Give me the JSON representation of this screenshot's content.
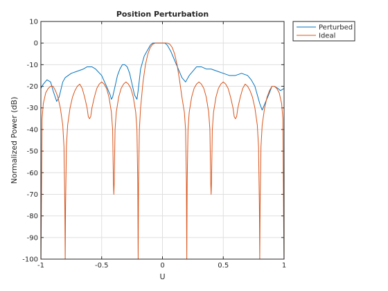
{
  "chart_data": {
    "type": "line",
    "title": "Position Perturbation",
    "xlabel": "U",
    "ylabel": "Normalized Power (dB)",
    "xlim": [
      -1,
      1
    ],
    "ylim": [
      -100,
      10
    ],
    "xticks": [
      -1,
      -0.5,
      0,
      0.5,
      1
    ],
    "xtick_labels": [
      "-1",
      "-0.5",
      "0",
      "0.5",
      "1"
    ],
    "yticks": [
      10,
      0,
      -10,
      -20,
      -30,
      -40,
      -50,
      -60,
      -70,
      -80,
      -90,
      -100
    ],
    "ytick_labels": [
      "10",
      "0",
      "-10",
      "-20",
      "-30",
      "-40",
      "-50",
      "-60",
      "-70",
      "-80",
      "-90",
      "-100"
    ],
    "grid": true,
    "legend_position": "top-right",
    "series": [
      {
        "name": "Perturbed",
        "color": "#0072bd",
        "x": [
          -1.0,
          -0.98,
          -0.95,
          -0.92,
          -0.9,
          -0.87,
          -0.85,
          -0.82,
          -0.8,
          -0.75,
          -0.7,
          -0.65,
          -0.62,
          -0.58,
          -0.55,
          -0.5,
          -0.46,
          -0.43,
          -0.42,
          -0.41,
          -0.39,
          -0.37,
          -0.35,
          -0.33,
          -0.31,
          -0.29,
          -0.27,
          -0.25,
          -0.23,
          -0.21,
          -0.2,
          -0.18,
          -0.15,
          -0.12,
          -0.1,
          -0.08,
          -0.05,
          -0.03,
          0.0,
          0.02,
          0.04,
          0.07,
          0.1,
          0.13,
          0.16,
          0.19,
          0.2,
          0.22,
          0.25,
          0.28,
          0.32,
          0.36,
          0.4,
          0.45,
          0.5,
          0.55,
          0.6,
          0.65,
          0.7,
          0.73,
          0.76,
          0.78,
          0.8,
          0.82,
          0.85,
          0.88,
          0.9,
          0.92,
          0.95,
          0.97,
          1.0
        ],
        "values": [
          -21,
          -19,
          -17,
          -18,
          -22,
          -27,
          -25,
          -18,
          -16,
          -14,
          -13,
          -12,
          -11,
          -11,
          -12,
          -15,
          -20,
          -24,
          -26,
          -25,
          -20,
          -15,
          -12,
          -10,
          -10,
          -11,
          -14,
          -19,
          -24,
          -26,
          -22,
          -12,
          -6,
          -3,
          -1,
          0,
          0,
          0,
          0,
          0,
          -1,
          -4,
          -8,
          -12,
          -16,
          -18,
          -17,
          -15,
          -13,
          -11,
          -11,
          -12,
          -12,
          -13,
          -14,
          -15,
          -15,
          -14,
          -15,
          -17,
          -20,
          -24,
          -28,
          -31,
          -27,
          -23,
          -20,
          -20,
          -21,
          -22,
          -21
        ]
      },
      {
        "name": "Ideal",
        "color": "#d95319",
        "x": [
          -1.0,
          -0.999,
          -0.99,
          -0.98,
          -0.96,
          -0.94,
          -0.92,
          -0.9,
          -0.88,
          -0.86,
          -0.84,
          -0.82,
          -0.81,
          -0.803,
          -0.8,
          -0.797,
          -0.79,
          -0.78,
          -0.76,
          -0.74,
          -0.72,
          -0.7,
          -0.68,
          -0.66,
          -0.64,
          -0.62,
          -0.61,
          -0.6,
          -0.59,
          -0.58,
          -0.56,
          -0.54,
          -0.52,
          -0.5,
          -0.48,
          -0.46,
          -0.44,
          -0.42,
          -0.41,
          -0.403,
          -0.4,
          -0.397,
          -0.39,
          -0.38,
          -0.36,
          -0.34,
          -0.32,
          -0.3,
          -0.28,
          -0.26,
          -0.24,
          -0.22,
          -0.21,
          -0.203,
          -0.2,
          -0.197,
          -0.19,
          -0.18,
          -0.16,
          -0.14,
          -0.12,
          -0.1,
          -0.08,
          -0.06,
          -0.04,
          -0.02,
          0.0,
          0.02,
          0.04,
          0.06,
          0.08,
          0.1,
          0.12,
          0.14,
          0.16,
          0.18,
          0.19,
          0.197,
          0.2,
          0.203,
          0.21,
          0.22,
          0.24,
          0.26,
          0.28,
          0.3,
          0.32,
          0.34,
          0.36,
          0.38,
          0.39,
          0.397,
          0.4,
          0.403,
          0.41,
          0.42,
          0.44,
          0.46,
          0.48,
          0.5,
          0.52,
          0.54,
          0.56,
          0.58,
          0.59,
          0.6,
          0.61,
          0.62,
          0.64,
          0.66,
          0.68,
          0.7,
          0.72,
          0.74,
          0.76,
          0.78,
          0.79,
          0.797,
          0.8,
          0.803,
          0.81,
          0.82,
          0.84,
          0.86,
          0.88,
          0.9,
          0.92,
          0.94,
          0.96,
          0.98,
          0.99,
          0.999,
          1.0
        ],
        "values": [
          -35,
          -100,
          -35,
          -28,
          -23,
          -21,
          -20,
          -20,
          -22,
          -25,
          -30,
          -38,
          -48,
          -75,
          -100,
          -75,
          -48,
          -38,
          -30,
          -25,
          -22,
          -20,
          -19,
          -21,
          -25,
          -30,
          -34,
          -35,
          -34,
          -30,
          -25,
          -21,
          -19,
          -18,
          -19,
          -21,
          -25,
          -32,
          -40,
          -65,
          -70,
          -65,
          -40,
          -32,
          -25,
          -21,
          -19,
          -18,
          -19,
          -21,
          -25,
          -32,
          -40,
          -65,
          -100,
          -65,
          -40,
          -30,
          -18,
          -10,
          -5,
          -2,
          -0.5,
          0,
          0,
          0,
          0,
          0,
          0,
          -0.5,
          -2,
          -5,
          -10,
          -17,
          -25,
          -32,
          -40,
          -65,
          -100,
          -65,
          -40,
          -32,
          -25,
          -21,
          -19,
          -18,
          -19,
          -21,
          -25,
          -32,
          -40,
          -65,
          -70,
          -65,
          -40,
          -32,
          -25,
          -21,
          -19,
          -18,
          -19,
          -21,
          -25,
          -30,
          -34,
          -35,
          -34,
          -30,
          -25,
          -21,
          -19,
          -20,
          -22,
          -25,
          -30,
          -38,
          -48,
          -75,
          -100,
          -75,
          -48,
          -38,
          -30,
          -25,
          -22,
          -20,
          -20,
          -21,
          -23,
          -28,
          -35,
          -100,
          -35
        ]
      }
    ]
  }
}
